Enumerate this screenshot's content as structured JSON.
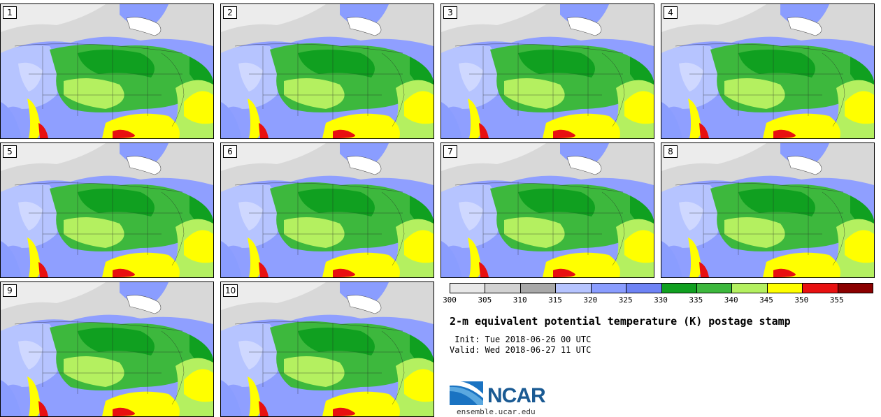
{
  "panels": [
    {
      "label": "1"
    },
    {
      "label": "2"
    },
    {
      "label": "3"
    },
    {
      "label": "4"
    },
    {
      "label": "5"
    },
    {
      "label": "6"
    },
    {
      "label": "7"
    },
    {
      "label": "8"
    },
    {
      "label": "9"
    },
    {
      "label": "10"
    }
  ],
  "colorbar": {
    "ticks": [
      "300",
      "305",
      "310",
      "315",
      "320",
      "325",
      "330",
      "335",
      "340",
      "345",
      "350",
      "355"
    ],
    "colors": [
      "#e8e8e8",
      "#d2d2d2",
      "#a8a8a8",
      "#b6c4ff",
      "#8a9dff",
      "#6e83f5",
      "#10a020",
      "#3db83d",
      "#b4f060",
      "#ffff00",
      "#e81010",
      "#8b0000"
    ]
  },
  "title": "2-m equivalent potential temperature (K) postage stamp",
  "init": " Init: Tue 2018-06-26 00 UTC",
  "valid": "Valid: Wed 2018-06-27 11 UTC",
  "logo": {
    "text": "NCAR",
    "site": "ensemble.ucar.edu",
    "icon": "ncar-swoosh-icon"
  }
}
